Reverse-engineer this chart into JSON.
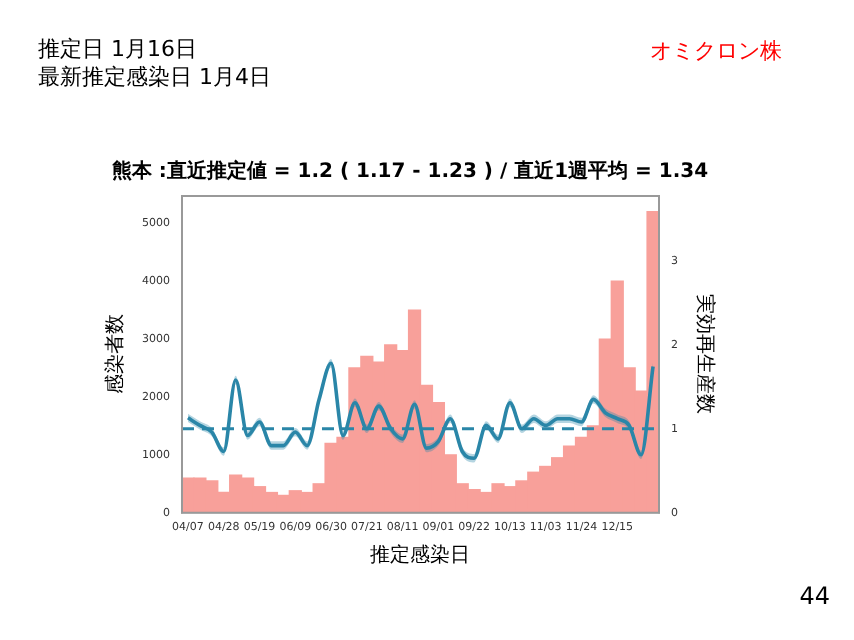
{
  "chart_data": {
    "type": "bar",
    "title": "熊本 :直近推定値 = 1.2 ( 1.17 - 1.23 ) / 直近1週平均 = 1.34",
    "annotations": [
      "推定日  1月16日",
      "最新推定感染日  1月4日",
      "オミクロン株",
      "44"
    ],
    "xlabel": "推定感染日",
    "ylabel": "感染者数",
    "y2label": "実効再生産数",
    "categories": [
      "04/07",
      null,
      null,
      "04/28",
      null,
      null,
      "05/19",
      null,
      null,
      "06/09",
      null,
      null,
      "06/30",
      null,
      null,
      "07/21",
      null,
      null,
      "08/11",
      null,
      null,
      "09/01",
      null,
      null,
      "09/22",
      null,
      null,
      "10/13",
      null,
      null,
      "11/03",
      null,
      null,
      "11/24",
      null,
      null,
      "12/15",
      null,
      null,
      null
    ],
    "series": [
      {
        "color": "#f8a09a",
        "values": [
          600,
          600,
          550,
          350,
          650,
          600,
          450,
          350,
          300,
          380,
          350,
          500,
          1200,
          1300,
          2500,
          2700,
          2600,
          2900,
          2800,
          3500,
          2200,
          1900,
          1000,
          500,
          400,
          350,
          500,
          450,
          550,
          700,
          800,
          950,
          1150,
          1300,
          1500,
          3000,
          4000,
          2500,
          2100,
          5200
        ]
      },
      {
        "type": "line",
        "axis": "y2",
        "color": "#2a86a8",
        "values": [
          1.13,
          1.04,
          0.96,
          0.73,
          1.58,
          0.92,
          1.08,
          0.8,
          0.8,
          0.96,
          0.8,
          1.35,
          1.78,
          0.92,
          1.31,
          1.0,
          1.27,
          1.0,
          0.88,
          1.29,
          0.77,
          0.85,
          1.12,
          0.73,
          0.65,
          1.04,
          0.88,
          1.31,
          1.0,
          1.12,
          1.04,
          1.12,
          1.12,
          1.08,
          1.35,
          1.19,
          1.12,
          1.04,
          0.69,
          1.74
        ],
        "lower": [
          1.08,
          0.99,
          0.91,
          0.68,
          1.53,
          0.87,
          1.03,
          0.75,
          0.75,
          0.91,
          0.75,
          1.3,
          1.73,
          0.87,
          1.26,
          0.95,
          1.22,
          0.95,
          0.83,
          1.24,
          0.72,
          0.8,
          1.07,
          0.68,
          0.6,
          0.99,
          0.83,
          1.26,
          0.95,
          1.07,
          0.99,
          1.07,
          1.07,
          1.03,
          1.3,
          1.14,
          1.07,
          0.99,
          0.64,
          1.69
        ],
        "upper": [
          1.18,
          1.09,
          1.01,
          0.78,
          1.63,
          0.97,
          1.13,
          0.85,
          0.85,
          1.01,
          0.85,
          1.4,
          1.83,
          0.97,
          1.36,
          1.05,
          1.32,
          1.05,
          0.93,
          1.34,
          0.82,
          0.9,
          1.17,
          0.78,
          0.7,
          1.09,
          0.93,
          1.36,
          1.05,
          1.17,
          1.09,
          1.17,
          1.17,
          1.13,
          1.4,
          1.24,
          1.17,
          1.09,
          0.74,
          1.79
        ]
      }
    ],
    "ylim": [
      0,
      5470
    ],
    "yticks": [
      0,
      1000,
      2000,
      3000,
      4000,
      5000
    ],
    "y2lim": [
      0,
      3.77
    ],
    "y2ticks": [
      0,
      1,
      2,
      3
    ],
    "ref_lines": [
      {
        "axis": "y2",
        "value": 1,
        "color": "#2a86a8",
        "line_style": "dashed"
      }
    ],
    "grid": false,
    "legend": false
  }
}
